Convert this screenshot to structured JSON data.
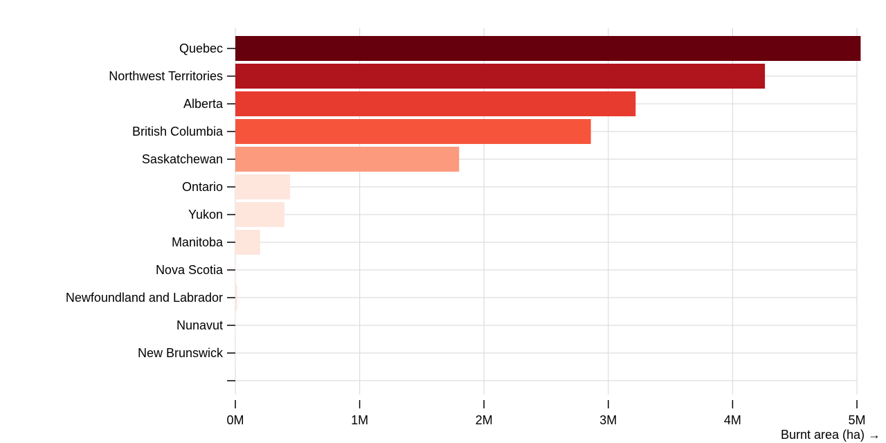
{
  "chart_data": {
    "type": "bar",
    "orientation": "horizontal",
    "categories": [
      "Quebec",
      "Northwest Territories",
      "Alberta",
      "British Columbia",
      "Saskatchewan",
      "Ontario",
      "Yukon",
      "Manitoba",
      "Nova Scotia",
      "Newfoundland and Labrador",
      "Nunavut",
      "New Brunswick",
      ""
    ],
    "values": [
      5030000,
      4260000,
      3220000,
      2860000,
      1800000,
      440000,
      395000,
      200000,
      8000,
      15000,
      2000,
      1000,
      0
    ],
    "colors": [
      "#67000d",
      "#b0141c",
      "#e83b2f",
      "#f6553c",
      "#fc9a7e",
      "#fee6dd",
      "#fee6dd",
      "#fee6dd",
      "#fff0eb",
      "#fee6dd",
      "#fff5f0",
      "#fff5f0",
      "#fff5f0"
    ],
    "xlabel": "Burnt area (ha) →",
    "ylabel": "",
    "xlim": [
      0,
      5000000
    ],
    "x_ticks": [
      {
        "value": 0,
        "label": "0M"
      },
      {
        "value": 1000000,
        "label": "1M"
      },
      {
        "value": 2000000,
        "label": "2M"
      },
      {
        "value": 3000000,
        "label": "3M"
      },
      {
        "value": 4000000,
        "label": "4M"
      },
      {
        "value": 5000000,
        "label": "5M"
      }
    ],
    "grid": true
  }
}
